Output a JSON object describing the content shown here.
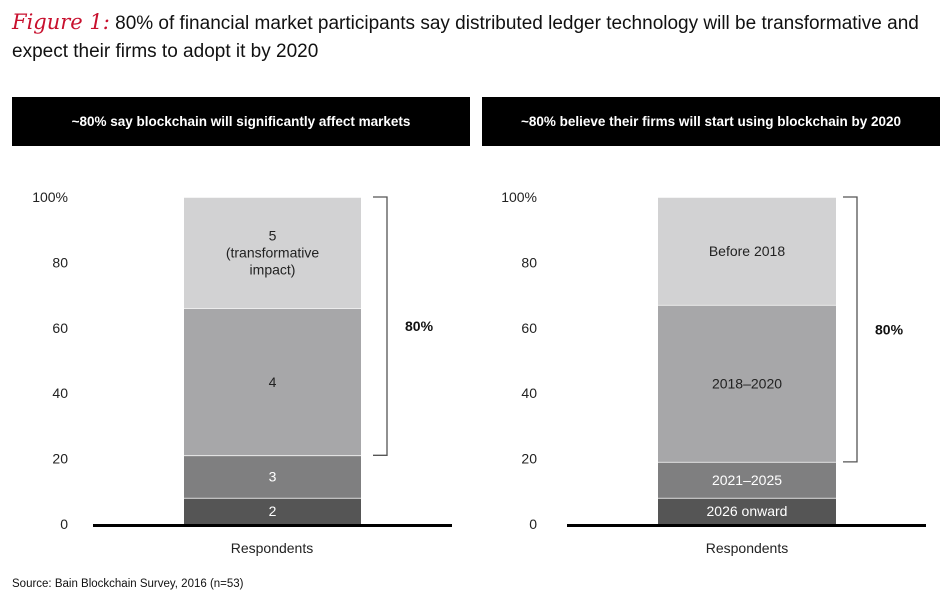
{
  "figure": {
    "label": "Figure 1:",
    "title": "80% of financial market participants say distributed ledger technology will be transformative and expect their firms to adopt it by 2020"
  },
  "source": "Source: Bain Blockchain Survey, 2016 (n=53)",
  "colors": {
    "seg_darkest": "#555555",
    "seg_dark": "#7f7f80",
    "seg_mid": "#a7a7a9",
    "seg_light": "#d2d2d3",
    "axis": "#000000"
  },
  "chart_data": [
    {
      "type": "bar",
      "stacked": true,
      "title": "~80% say blockchain will significantly affect markets",
      "categories": [
        "Respondents"
      ],
      "y_ticks": [
        "0",
        "20",
        "40",
        "60",
        "80",
        "100%"
      ],
      "ylim": [
        0,
        100
      ],
      "series": [
        {
          "name": "2",
          "values": [
            8
          ],
          "color_key": "seg_darkest"
        },
        {
          "name": "3",
          "values": [
            13
          ],
          "color_key": "seg_dark"
        },
        {
          "name": "4",
          "values": [
            45
          ],
          "color_key": "seg_mid"
        },
        {
          "name": "5 (transformative impact)",
          "label_lines": [
            "5",
            "(transformative",
            "impact)"
          ],
          "values": [
            34
          ],
          "color_key": "seg_light"
        }
      ],
      "bracket": {
        "label": "80%",
        "from": 21,
        "to": 100
      }
    },
    {
      "type": "bar",
      "stacked": true,
      "title": "~80% believe their firms will start using blockchain by 2020",
      "categories": [
        "Respondents"
      ],
      "y_ticks": [
        "0",
        "20",
        "40",
        "60",
        "80",
        "100%"
      ],
      "ylim": [
        0,
        100
      ],
      "series": [
        {
          "name": "2026 onward",
          "values": [
            8
          ],
          "color_key": "seg_darkest"
        },
        {
          "name": "2021–2025",
          "values": [
            11
          ],
          "color_key": "seg_dark"
        },
        {
          "name": "2018–2020",
          "values": [
            48
          ],
          "color_key": "seg_mid"
        },
        {
          "name": "Before 2018",
          "values": [
            33
          ],
          "color_key": "seg_light"
        }
      ],
      "bracket": {
        "label": "80%",
        "from": 19,
        "to": 100
      }
    }
  ]
}
